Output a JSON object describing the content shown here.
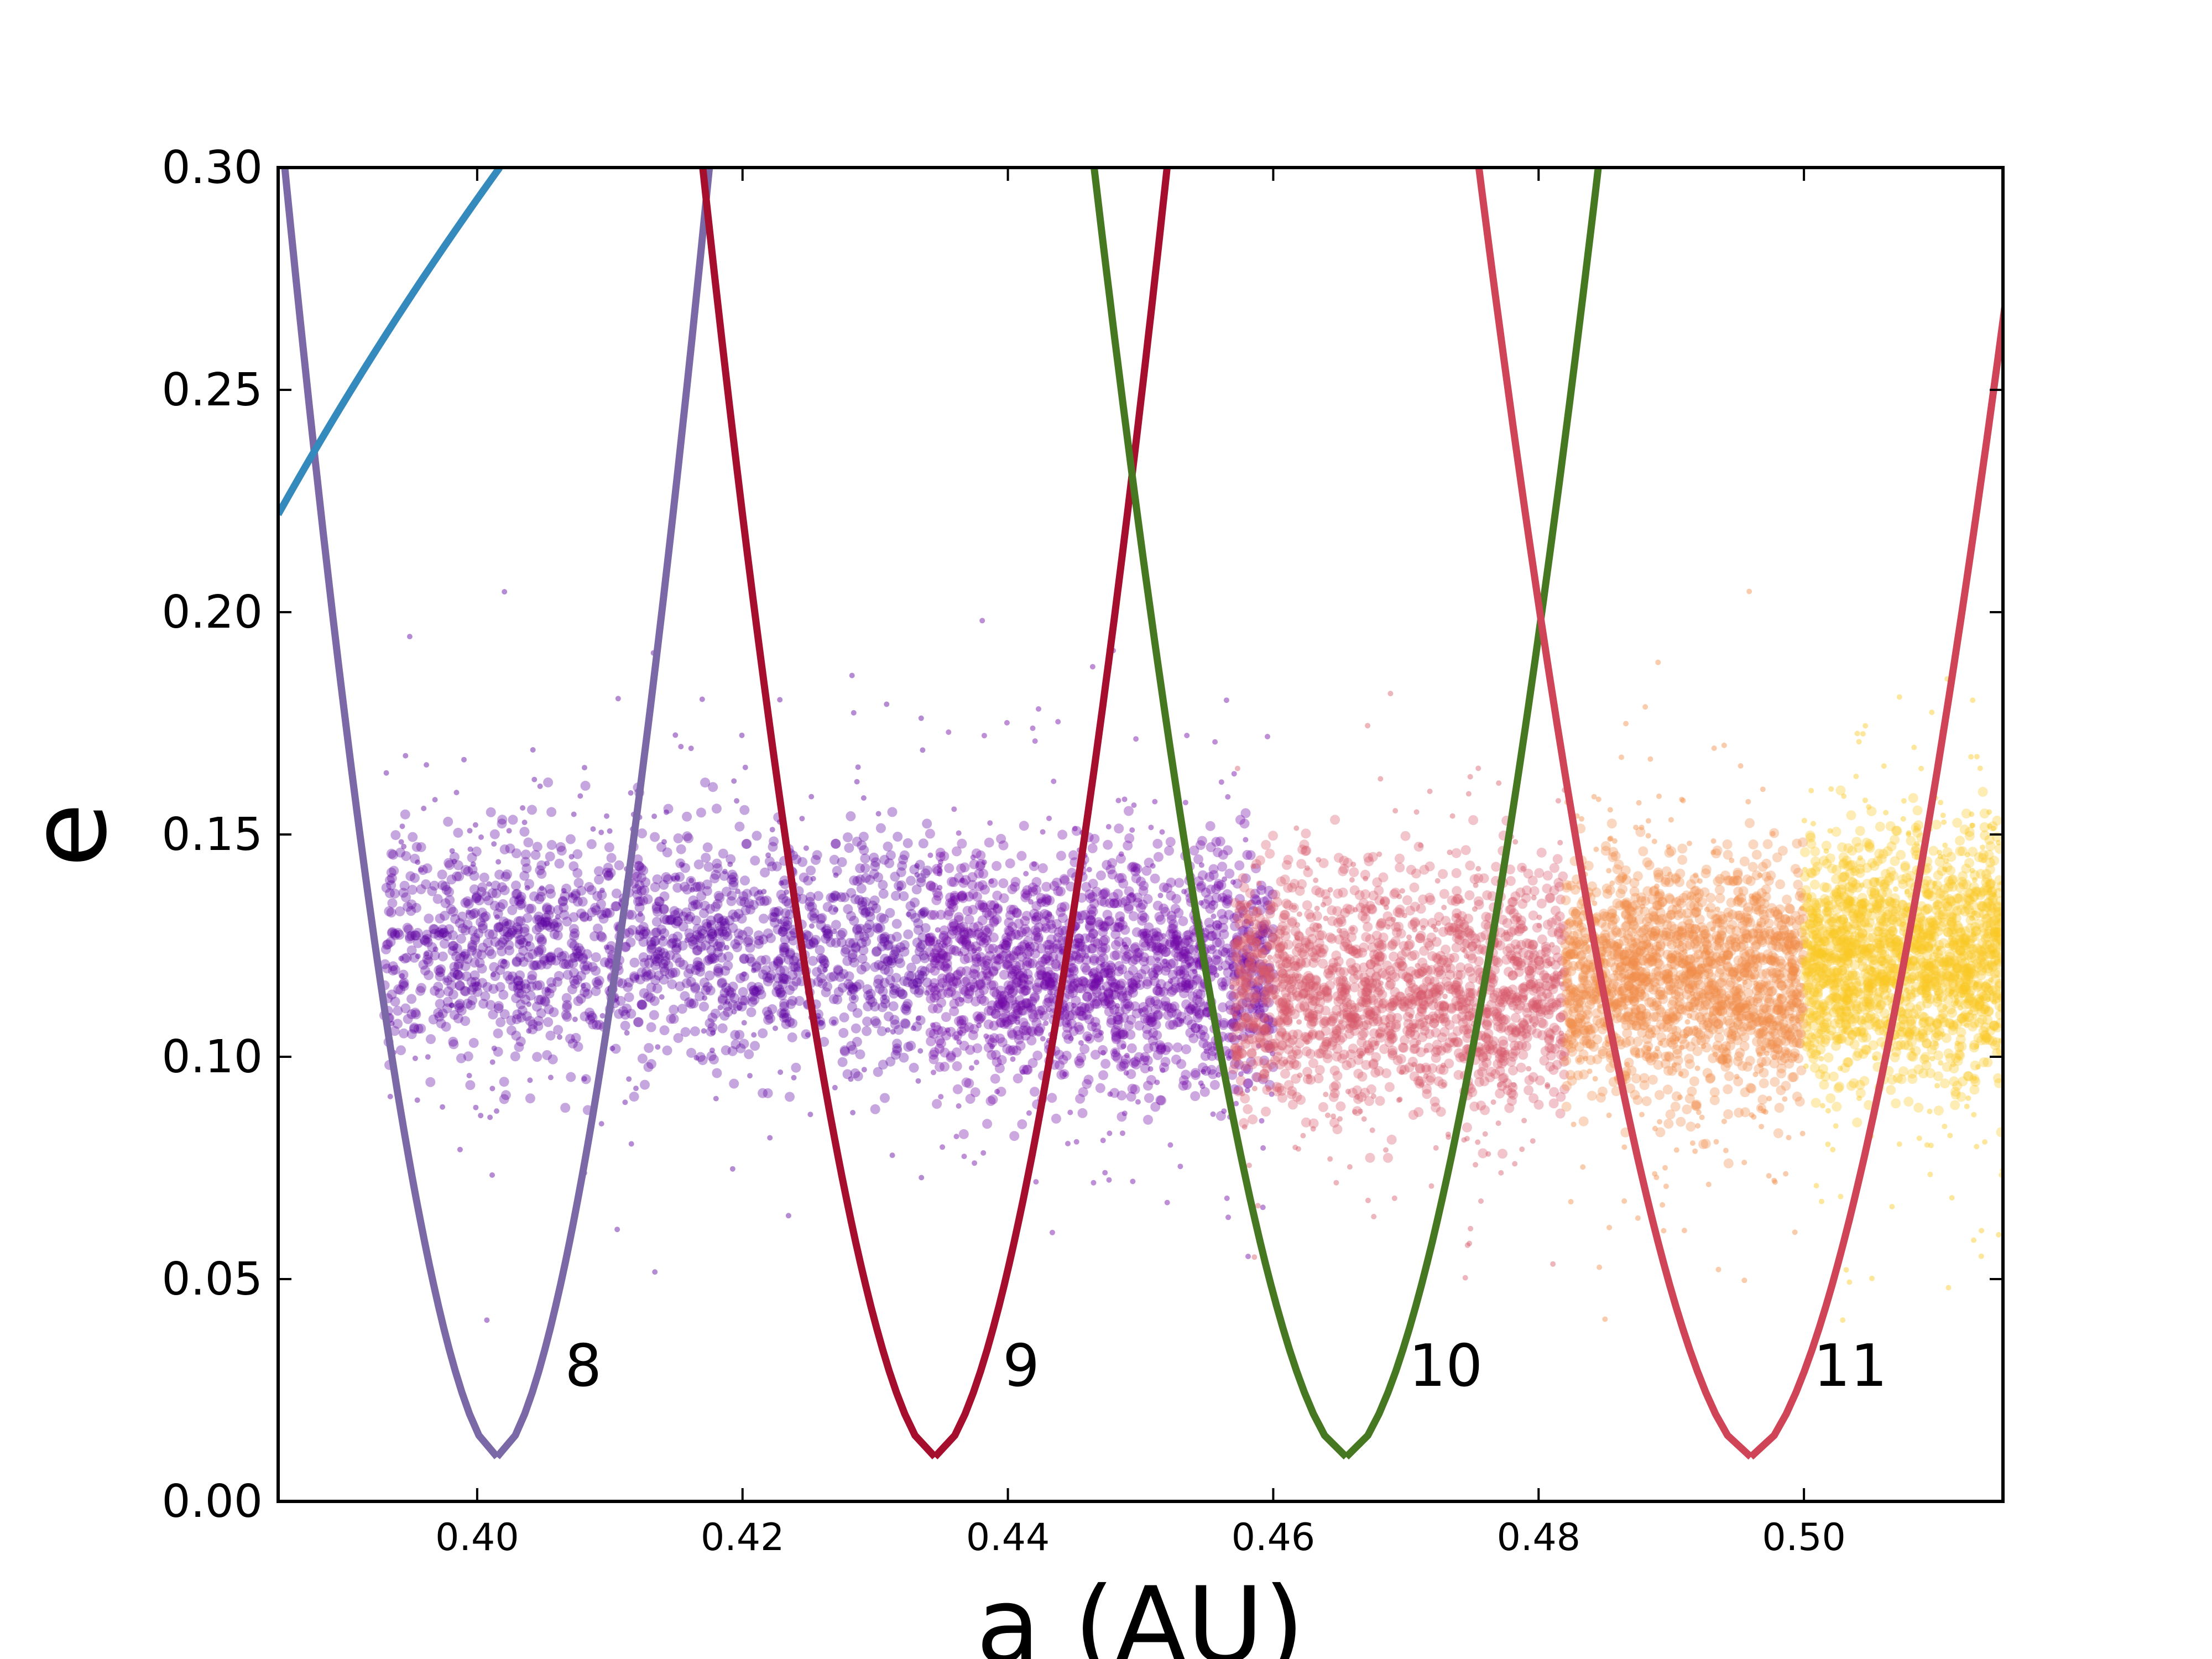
{
  "chart_data": {
    "type": "scatter",
    "xlabel": "a (AU)",
    "ylabel": "e",
    "xlim": [
      0.385,
      0.515
    ],
    "ylim": [
      0.0,
      0.3
    ],
    "x_ticks": [
      "0.40",
      "0.42",
      "0.44",
      "0.46",
      "0.48",
      "0.50"
    ],
    "y_ticks": [
      "0.00",
      "0.05",
      "0.10",
      "0.15",
      "0.20",
      "0.25",
      "0.30"
    ],
    "grid": false,
    "resonances": [
      {
        "label": "8",
        "a_center": 0.4015,
        "color": "#7b68a6"
      },
      {
        "label": "9",
        "a_center": 0.4345,
        "color": "#a50f2d"
      },
      {
        "label": "10",
        "a_center": 0.4655,
        "color": "#467821"
      },
      {
        "label": "11",
        "a_center": 0.496,
        "color": "#cf4457"
      }
    ],
    "extra_curve": {
      "color": "#348abd",
      "from": [
        0.385,
        0.222
      ],
      "to": [
        0.4017,
        0.3
      ]
    },
    "point_clouds": [
      {
        "a_range": [
          0.393,
          0.434
        ],
        "e_mean": 0.125,
        "color": "#5b00a0",
        "alpha": 0.35
      },
      {
        "a_range": [
          0.434,
          0.46
        ],
        "e_mean": 0.12,
        "color": "#6f05a6",
        "alpha": 0.35
      },
      {
        "a_range": [
          0.457,
          0.482
        ],
        "e_mean": 0.115,
        "color": "#d65a6a",
        "alpha": 0.35
      },
      {
        "a_range": [
          0.482,
          0.5
        ],
        "e_mean": 0.118,
        "color": "#f28d4a",
        "alpha": 0.35
      },
      {
        "a_range": [
          0.5,
          0.515
        ],
        "e_mean": 0.122,
        "color": "#f8c926",
        "alpha": 0.35
      }
    ]
  }
}
